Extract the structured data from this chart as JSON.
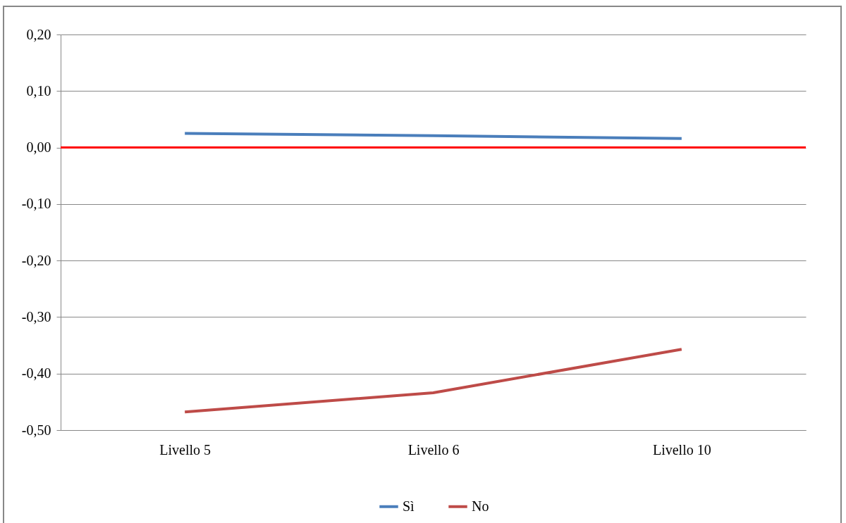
{
  "chart_data": {
    "type": "line",
    "categories": [
      "Livello 5",
      "Livello 6",
      "Livello 10"
    ],
    "series": [
      {
        "name": "Sì",
        "color": "#4a7ebb",
        "values": [
          0.025,
          0.021,
          0.016
        ]
      },
      {
        "name": "No",
        "color": "#be4b48",
        "values": [
          -0.468,
          -0.434,
          -0.357
        ]
      }
    ],
    "ylim": [
      -0.5,
      0.2
    ],
    "yticks": [
      {
        "value": -0.5,
        "label": "-0,50"
      },
      {
        "value": -0.4,
        "label": "-0,40"
      },
      {
        "value": -0.3,
        "label": "-0,30"
      },
      {
        "value": -0.2,
        "label": "-0,20"
      },
      {
        "value": -0.1,
        "label": "-0,10"
      },
      {
        "value": 0,
        "label": "0,00"
      },
      {
        "value": 0.1,
        "label": "0,10"
      },
      {
        "value": 0.2,
        "label": "0,20"
      }
    ],
    "ref_lines": [
      {
        "axis": "y",
        "value": 0,
        "color": "#ff0000"
      }
    ],
    "grid": "y",
    "legend": "bottom",
    "marker": "none",
    "line_style": "solid"
  }
}
